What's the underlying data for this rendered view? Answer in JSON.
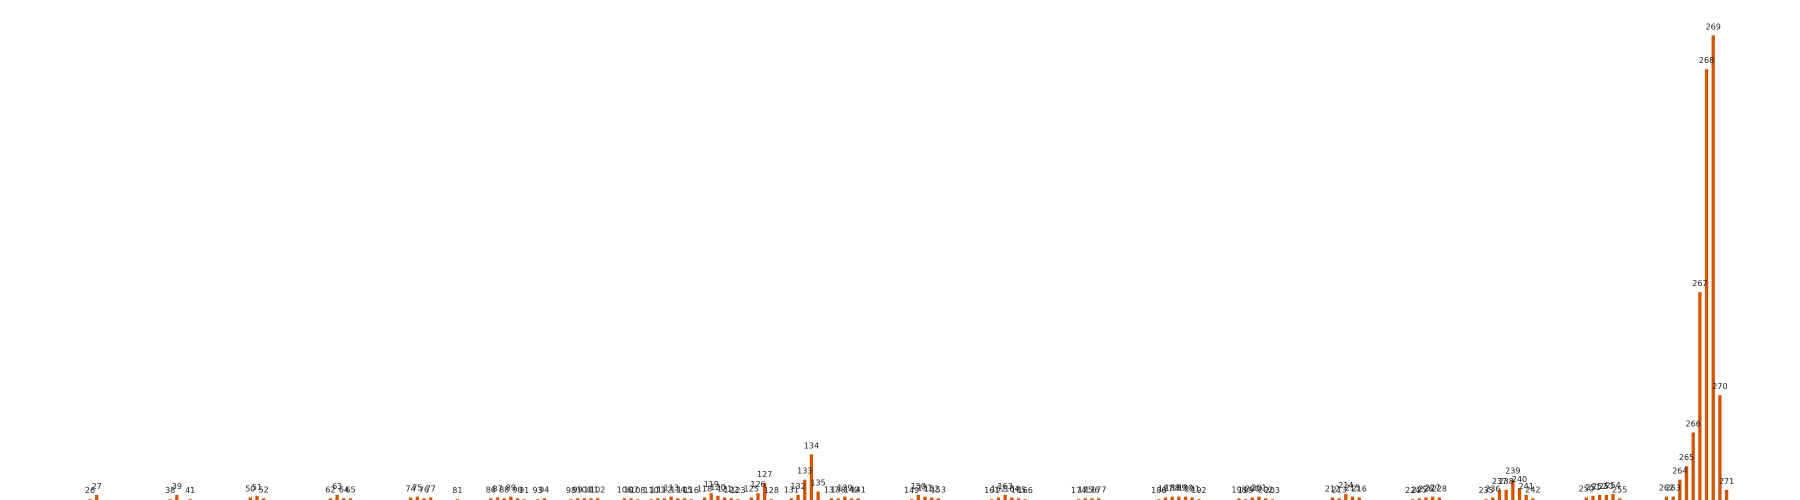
{
  "chart_data": {
    "type": "bar",
    "title": "",
    "xlabel": "",
    "ylabel": "",
    "legend": "none",
    "grid": false,
    "axes_visible": false,
    "bar_color": "#d35400",
    "ylim": [
      0,
      290
    ],
    "bars": [
      {
        "x": 26,
        "label": "26",
        "value": 0.5
      },
      {
        "x": 27,
        "label": "27",
        "value": 3
      },
      {
        "x": 38,
        "label": "38",
        "value": 0.5
      },
      {
        "x": 39,
        "label": "39",
        "value": 3
      },
      {
        "x": 41,
        "label": "41",
        "value": 0.3
      },
      {
        "x": 50,
        "label": "50",
        "value": 1.5
      },
      {
        "x": 51,
        "label": "51",
        "value": 2.5
      },
      {
        "x": 52,
        "label": "52",
        "value": 1
      },
      {
        "x": 62,
        "label": "62",
        "value": 1
      },
      {
        "x": 63,
        "label": "63",
        "value": 3
      },
      {
        "x": 64,
        "label": "64",
        "value": 1
      },
      {
        "x": 65,
        "label": "65",
        "value": 1
      },
      {
        "x": 74,
        "label": "74",
        "value": 1.5
      },
      {
        "x": 75,
        "label": "75",
        "value": 2
      },
      {
        "x": 76,
        "label": "76",
        "value": 1
      },
      {
        "x": 77,
        "label": "77",
        "value": 1.5
      },
      {
        "x": 81,
        "label": "81",
        "value": 0.5
      },
      {
        "x": 86,
        "label": "86",
        "value": 1
      },
      {
        "x": 87,
        "label": "87",
        "value": 1.5
      },
      {
        "x": 88,
        "label": "88",
        "value": 1
      },
      {
        "x": 89,
        "label": "89",
        "value": 2
      },
      {
        "x": 90,
        "label": "90",
        "value": 1
      },
      {
        "x": 91,
        "label": "91",
        "value": 0.5
      },
      {
        "x": 93,
        "label": "93",
        "value": 0.5
      },
      {
        "x": 94,
        "label": "94",
        "value": 1
      },
      {
        "x": 98,
        "label": "98",
        "value": 0.5
      },
      {
        "x": 99,
        "label": "99",
        "value": 1
      },
      {
        "x": 100,
        "label": "100",
        "value": 1
      },
      {
        "x": 101,
        "label": "101",
        "value": 1
      },
      {
        "x": 102,
        "label": "102",
        "value": 1
      },
      {
        "x": 106,
        "label": "106",
        "value": 1
      },
      {
        "x": 107,
        "label": "107",
        "value": 1
      },
      {
        "x": 108,
        "label": "108",
        "value": 0.5
      },
      {
        "x": 110,
        "label": "110",
        "value": 0.5
      },
      {
        "x": 111,
        "label": "111",
        "value": 1
      },
      {
        "x": 112,
        "label": "112",
        "value": 1
      },
      {
        "x": 113,
        "label": "113",
        "value": 2
      },
      {
        "x": 114,
        "label": "114",
        "value": 1
      },
      {
        "x": 115,
        "label": "115",
        "value": 1
      },
      {
        "x": 116,
        "label": "116",
        "value": 0.5
      },
      {
        "x": 118,
        "label": "118",
        "value": 1.5
      },
      {
        "x": 119,
        "label": "119",
        "value": 4
      },
      {
        "x": 120,
        "label": "120",
        "value": 2.5
      },
      {
        "x": 121,
        "label": "121",
        "value": 1.5
      },
      {
        "x": 122,
        "label": "122",
        "value": 1
      },
      {
        "x": 123,
        "label": "123",
        "value": 0.5
      },
      {
        "x": 125,
        "label": "125",
        "value": 1.5
      },
      {
        "x": 126,
        "label": "126",
        "value": 4
      },
      {
        "x": 127,
        "label": "127",
        "value": 10
      },
      {
        "x": 128,
        "label": "128",
        "value": 0.5
      },
      {
        "x": 131,
        "label": "131",
        "value": 1
      },
      {
        "x": 132,
        "label": "132",
        "value": 3
      },
      {
        "x": 133,
        "label": "133",
        "value": 12
      },
      {
        "x": 134,
        "label": "134",
        "value": 27
      },
      {
        "x": 135,
        "label": "135",
        "value": 5
      },
      {
        "x": 137,
        "label": "137",
        "value": 1
      },
      {
        "x": 138,
        "label": "138",
        "value": 1
      },
      {
        "x": 139,
        "label": "139",
        "value": 2
      },
      {
        "x": 140,
        "label": "140",
        "value": 1
      },
      {
        "x": 141,
        "label": "141",
        "value": 1
      },
      {
        "x": 149,
        "label": "149",
        "value": 0.5
      },
      {
        "x": 150,
        "label": "150",
        "value": 3
      },
      {
        "x": 151,
        "label": "151",
        "value": 2
      },
      {
        "x": 152,
        "label": "152",
        "value": 1.5
      },
      {
        "x": 153,
        "label": "153",
        "value": 1
      },
      {
        "x": 161,
        "label": "161",
        "value": 0.5
      },
      {
        "x": 162,
        "label": "162",
        "value": 1.5
      },
      {
        "x": 163,
        "label": "163",
        "value": 3
      },
      {
        "x": 164,
        "label": "164",
        "value": 1.5
      },
      {
        "x": 165,
        "label": "165",
        "value": 1
      },
      {
        "x": 166,
        "label": "166",
        "value": 0.5
      },
      {
        "x": 174,
        "label": "174",
        "value": 0.5
      },
      {
        "x": 175,
        "label": "175",
        "value": 1
      },
      {
        "x": 176,
        "label": "176",
        "value": 1
      },
      {
        "x": 177,
        "label": "177",
        "value": 1
      },
      {
        "x": 186,
        "label": "186",
        "value": 0.5
      },
      {
        "x": 187,
        "label": "187",
        "value": 1.5
      },
      {
        "x": 188,
        "label": "188",
        "value": 2
      },
      {
        "x": 189,
        "label": "189",
        "value": 2
      },
      {
        "x": 190,
        "label": "190",
        "value": 2
      },
      {
        "x": 191,
        "label": "191",
        "value": 1.5
      },
      {
        "x": 192,
        "label": "192",
        "value": 0.5
      },
      {
        "x": 198,
        "label": "198",
        "value": 1
      },
      {
        "x": 199,
        "label": "199",
        "value": 0.5
      },
      {
        "x": 200,
        "label": "200",
        "value": 1.5
      },
      {
        "x": 201,
        "label": "201",
        "value": 2
      },
      {
        "x": 202,
        "label": "202",
        "value": 1
      },
      {
        "x": 203,
        "label": "203",
        "value": 0.5
      },
      {
        "x": 212,
        "label": "212",
        "value": 1.5
      },
      {
        "x": 213,
        "label": "213",
        "value": 1
      },
      {
        "x": 214,
        "label": "214",
        "value": 3.5
      },
      {
        "x": 215,
        "label": "215",
        "value": 2
      },
      {
        "x": 216,
        "label": "216",
        "value": 1.5
      },
      {
        "x": 224,
        "label": "224",
        "value": 0.5
      },
      {
        "x": 225,
        "label": "225",
        "value": 1
      },
      {
        "x": 226,
        "label": "226",
        "value": 1.5
      },
      {
        "x": 227,
        "label": "227",
        "value": 2
      },
      {
        "x": 228,
        "label": "228",
        "value": 1.5
      },
      {
        "x": 235,
        "label": "235",
        "value": 0.5
      },
      {
        "x": 236,
        "label": "236",
        "value": 1.5
      },
      {
        "x": 237,
        "label": "237",
        "value": 6
      },
      {
        "x": 238,
        "label": "238",
        "value": 6
      },
      {
        "x": 239,
        "label": "239",
        "value": 12
      },
      {
        "x": 240,
        "label": "240",
        "value": 7
      },
      {
        "x": 241,
        "label": "241",
        "value": 3
      },
      {
        "x": 242,
        "label": "242",
        "value": 1
      },
      {
        "x": 250,
        "label": "250",
        "value": 1.5
      },
      {
        "x": 251,
        "label": "251",
        "value": 2.5
      },
      {
        "x": 252,
        "label": "252",
        "value": 3
      },
      {
        "x": 253,
        "label": "253",
        "value": 3
      },
      {
        "x": 254,
        "label": "254",
        "value": 3.5
      },
      {
        "x": 255,
        "label": "255",
        "value": 1
      },
      {
        "x": 262,
        "label": "262",
        "value": 2
      },
      {
        "x": 263,
        "label": "263",
        "value": 2
      },
      {
        "x": 264,
        "label": "264",
        "value": 12
      },
      {
        "x": 265,
        "label": "265",
        "value": 20
      },
      {
        "x": 266,
        "label": "266",
        "value": 40
      },
      {
        "x": 267,
        "label": "267",
        "value": 123
      },
      {
        "x": 268,
        "label": "268",
        "value": 255
      },
      {
        "x": 269,
        "label": "269",
        "value": 275
      },
      {
        "x": 270,
        "label": "270",
        "value": 62
      },
      {
        "x": 271,
        "label": "271",
        "value": 6
      }
    ]
  }
}
